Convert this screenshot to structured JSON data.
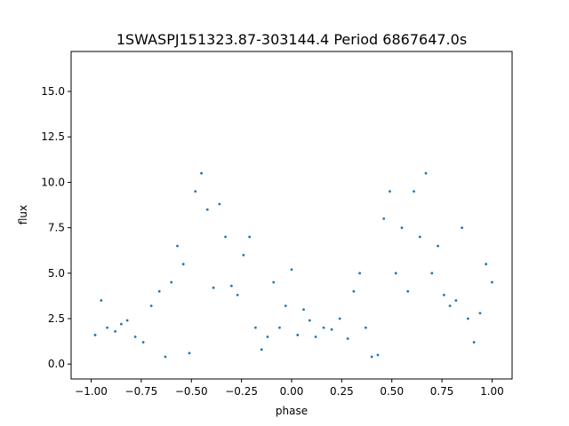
{
  "chart_data": {
    "type": "scatter",
    "title": "1SWASPJ151323.87-303144.4 Period 6867647.0s",
    "xlabel": "phase",
    "ylabel": "flux",
    "xlim": [
      -1.1,
      1.1
    ],
    "ylim": [
      -0.82,
      17.2
    ],
    "xticks": [
      -1.0,
      -0.75,
      -0.5,
      -0.25,
      0.0,
      0.25,
      0.5,
      0.75,
      1.0
    ],
    "xtick_labels": [
      "−1.00",
      "−0.75",
      "−0.50",
      "−0.25",
      "0.00",
      "0.25",
      "0.50",
      "0.75",
      "1.00"
    ],
    "yticks": [
      0.0,
      2.5,
      5.0,
      7.5,
      10.0,
      12.5,
      15.0
    ],
    "ytick_labels": [
      "0.0",
      "2.5",
      "5.0",
      "7.5",
      "10.0",
      "12.5",
      "15.0"
    ],
    "grid": false,
    "legend": "none",
    "color": "#1f77b4",
    "series": [
      {
        "x": [
          -0.98,
          -0.95,
          -0.92,
          -0.88,
          -0.85,
          -0.82,
          -0.78,
          -0.74,
          -0.7,
          -0.66,
          -0.63,
          -0.6,
          -0.57,
          -0.54,
          -0.51,
          -0.48,
          -0.45,
          -0.42,
          -0.39,
          -0.36,
          -0.33,
          -0.3,
          -0.27,
          -0.24,
          -0.21,
          -0.18,
          -0.15,
          -0.12,
          -0.09,
          -0.06,
          -0.03,
          0.0,
          0.03,
          0.06,
          0.09,
          0.12,
          0.16,
          0.2,
          0.24,
          0.28,
          0.31,
          0.34,
          0.37,
          0.4,
          0.43,
          0.46,
          0.49,
          0.52,
          0.55,
          0.58,
          0.61,
          0.64,
          0.67,
          0.7,
          0.73,
          0.76,
          0.79,
          0.82,
          0.85,
          0.88,
          0.91,
          0.94,
          0.97,
          1.0
        ],
        "y": [
          1.6,
          3.5,
          2.0,
          1.8,
          2.2,
          2.4,
          1.5,
          1.2,
          3.2,
          4.0,
          0.4,
          4.5,
          6.5,
          5.5,
          0.6,
          9.5,
          10.5,
          8.5,
          4.2,
          8.8,
          7.0,
          4.3,
          3.8,
          6.0,
          7.0,
          2.0,
          0.8,
          1.5,
          4.5,
          2.0,
          3.2,
          5.2,
          1.6,
          3.0,
          2.4,
          1.5,
          2.0,
          1.9,
          2.5,
          1.4,
          4.0,
          5.0,
          2.0,
          0.4,
          0.5,
          8.0,
          9.5,
          5.0,
          7.5,
          4.0,
          9.5,
          7.0,
          10.5,
          5.0,
          6.5,
          3.8,
          3.2,
          3.5,
          7.5,
          2.5,
          1.2,
          2.8,
          5.5,
          4.5
        ]
      }
    ]
  }
}
